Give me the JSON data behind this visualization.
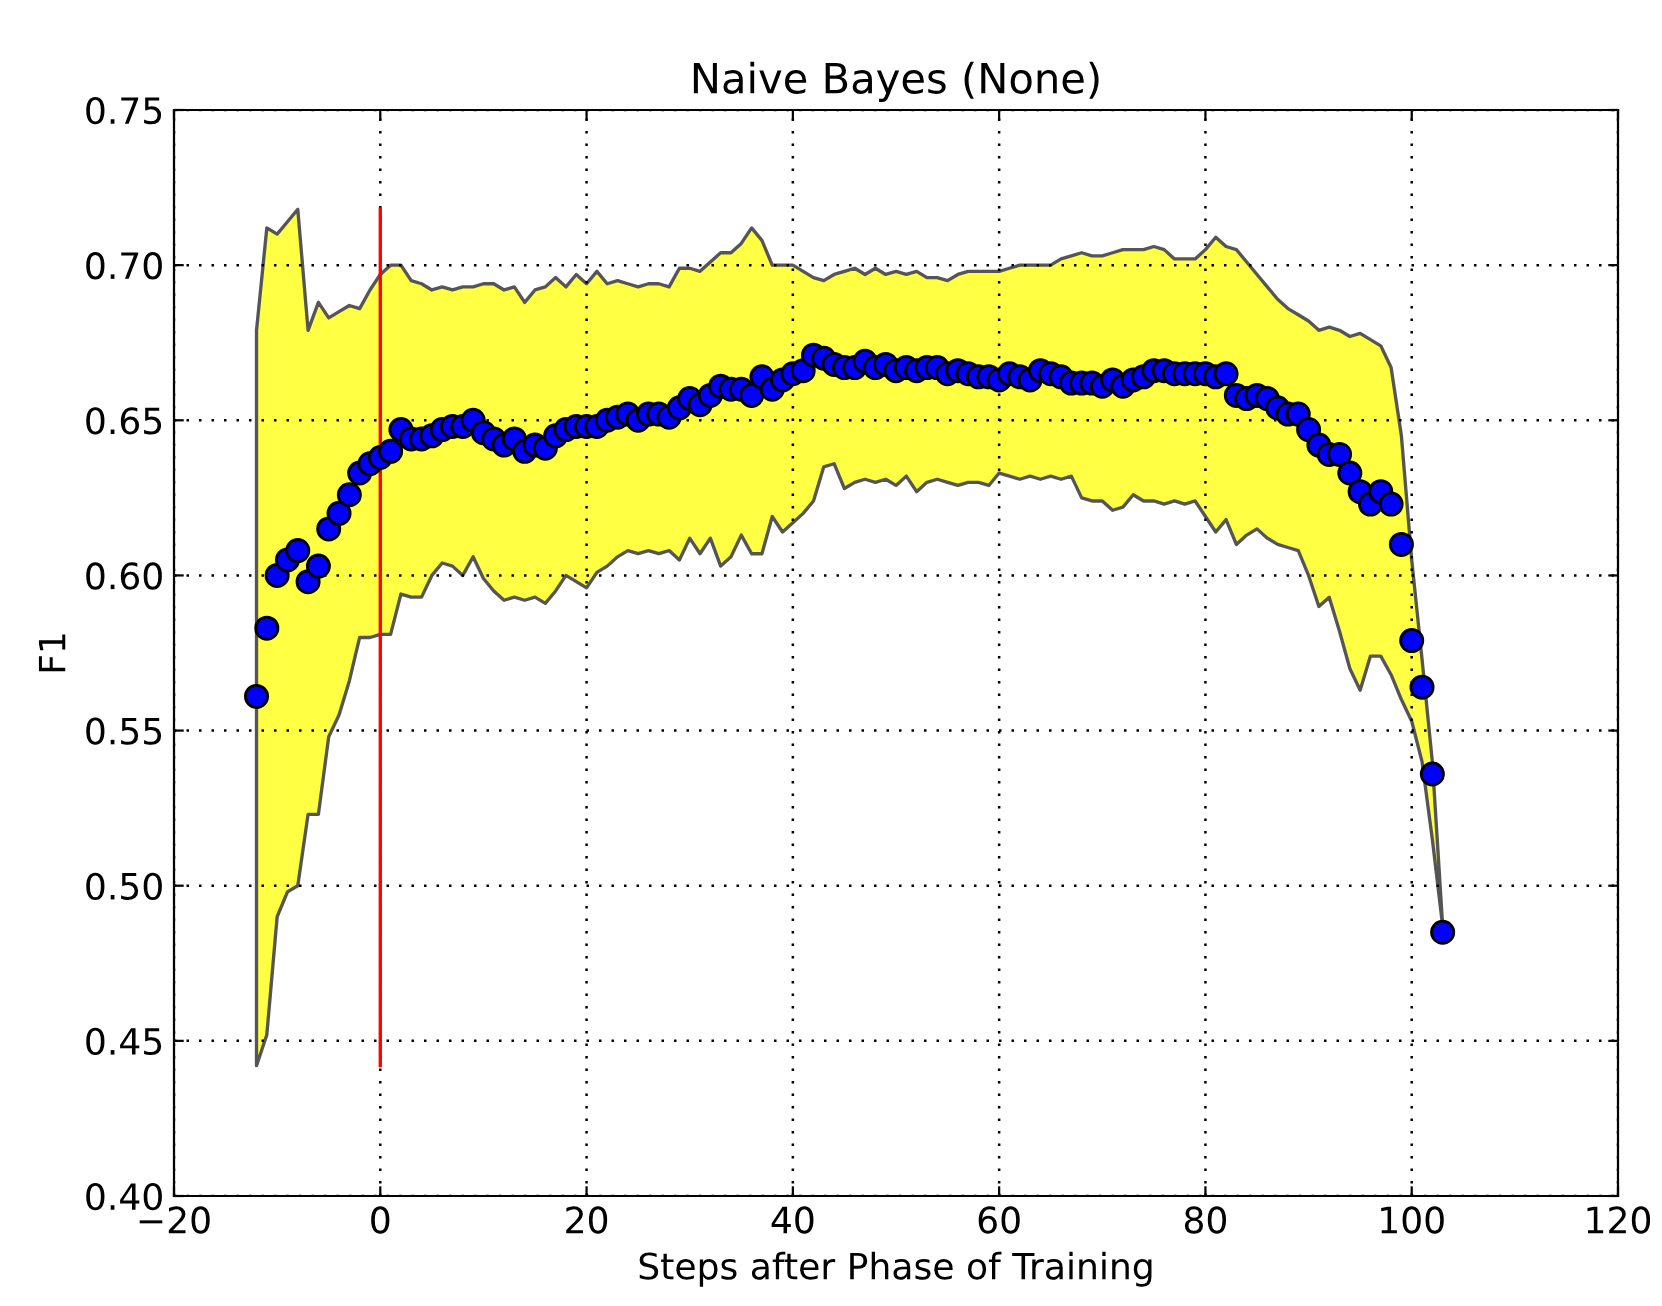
{
  "chart_data": {
    "type": "scatter",
    "title": "Naive Bayes (None)",
    "xlabel": "Steps after Phase of Training",
    "ylabel": "F1",
    "x": [
      -12,
      -11,
      -10,
      -9,
      -8,
      -7,
      -6,
      -5,
      -4,
      -3,
      -2,
      -1,
      0,
      1,
      2,
      3,
      4,
      5,
      6,
      7,
      8,
      9,
      10,
      11,
      12,
      13,
      14,
      15,
      16,
      17,
      18,
      19,
      20,
      21,
      22,
      23,
      24,
      25,
      26,
      27,
      28,
      29,
      30,
      31,
      32,
      33,
      34,
      35,
      36,
      37,
      38,
      39,
      40,
      41,
      42,
      43,
      44,
      45,
      46,
      47,
      48,
      49,
      50,
      51,
      52,
      53,
      54,
      55,
      56,
      57,
      58,
      59,
      60,
      61,
      62,
      63,
      64,
      65,
      66,
      67,
      68,
      69,
      70,
      71,
      72,
      73,
      74,
      75,
      76,
      77,
      78,
      79,
      80,
      81,
      82,
      83,
      84,
      85,
      86,
      87,
      88,
      89,
      90,
      91,
      92,
      93,
      94,
      95,
      96,
      97,
      98,
      99,
      100,
      101,
      102,
      103
    ],
    "series": [
      {
        "color": "#0000ff",
        "values": [
          0.561,
          0.583,
          0.6,
          0.605,
          0.608,
          0.598,
          0.603,
          0.615,
          0.62,
          0.626,
          0.633,
          0.636,
          0.638,
          0.64,
          0.647,
          0.644,
          0.644,
          0.645,
          0.647,
          0.648,
          0.648,
          0.65,
          0.646,
          0.644,
          0.642,
          0.644,
          0.64,
          0.642,
          0.641,
          0.645,
          0.647,
          0.648,
          0.648,
          0.648,
          0.65,
          0.651,
          0.652,
          0.65,
          0.652,
          0.652,
          0.651,
          0.654,
          0.657,
          0.655,
          0.658,
          0.661,
          0.66,
          0.66,
          0.658,
          0.664,
          0.66,
          0.663,
          0.665,
          0.666,
          0.671,
          0.67,
          0.668,
          0.667,
          0.667,
          0.669,
          0.667,
          0.668,
          0.666,
          0.667,
          0.666,
          0.667,
          0.667,
          0.665,
          0.666,
          0.665,
          0.664,
          0.664,
          0.663,
          0.665,
          0.664,
          0.663,
          0.666,
          0.665,
          0.664,
          0.662,
          0.662,
          0.662,
          0.661,
          0.663,
          0.661,
          0.663,
          0.664,
          0.666,
          0.666,
          0.665,
          0.665,
          0.665,
          0.665,
          0.664,
          0.665,
          0.658,
          0.657,
          0.658,
          0.657,
          0.654,
          0.652,
          0.652,
          0.647,
          0.642,
          0.639,
          0.639,
          0.633,
          0.627,
          0.623,
          0.627,
          0.623,
          0.61,
          0.579,
          0.564,
          0.536,
          0.485
        ],
        "upper": [
          0.679,
          0.712,
          0.71,
          0.714,
          0.718,
          0.679,
          0.688,
          0.683,
          0.685,
          0.687,
          0.686,
          0.692,
          0.697,
          0.7,
          0.7,
          0.695,
          0.694,
          0.692,
          0.693,
          0.692,
          0.693,
          0.693,
          0.694,
          0.694,
          0.692,
          0.693,
          0.688,
          0.692,
          0.693,
          0.696,
          0.693,
          0.697,
          0.694,
          0.698,
          0.694,
          0.695,
          0.694,
          0.693,
          0.694,
          0.694,
          0.693,
          0.699,
          0.699,
          0.698,
          0.701,
          0.704,
          0.704,
          0.707,
          0.712,
          0.708,
          0.7,
          0.7,
          0.7,
          0.698,
          0.696,
          0.695,
          0.697,
          0.698,
          0.699,
          0.697,
          0.699,
          0.697,
          0.698,
          0.697,
          0.698,
          0.696,
          0.696,
          0.695,
          0.697,
          0.698,
          0.698,
          0.698,
          0.698,
          0.699,
          0.7,
          0.7,
          0.7,
          0.7,
          0.702,
          0.703,
          0.704,
          0.703,
          0.703,
          0.704,
          0.705,
          0.705,
          0.705,
          0.706,
          0.705,
          0.702,
          0.702,
          0.702,
          0.705,
          0.709,
          0.706,
          0.705,
          0.701,
          0.697,
          0.693,
          0.689,
          0.686,
          0.684,
          0.682,
          0.679,
          0.68,
          0.679,
          0.677,
          0.678,
          0.676,
          0.674,
          0.667,
          0.645,
          0.605,
          0.573,
          0.54,
          0.487
        ],
        "lower": [
          0.442,
          0.452,
          0.49,
          0.498,
          0.5,
          0.523,
          0.523,
          0.548,
          0.555,
          0.566,
          0.58,
          0.58,
          0.581,
          0.581,
          0.594,
          0.593,
          0.593,
          0.6,
          0.604,
          0.603,
          0.6,
          0.606,
          0.599,
          0.595,
          0.592,
          0.593,
          0.592,
          0.593,
          0.591,
          0.595,
          0.6,
          0.598,
          0.596,
          0.601,
          0.603,
          0.606,
          0.608,
          0.607,
          0.608,
          0.607,
          0.608,
          0.605,
          0.612,
          0.607,
          0.612,
          0.603,
          0.606,
          0.613,
          0.607,
          0.607,
          0.619,
          0.614,
          0.617,
          0.62,
          0.624,
          0.635,
          0.636,
          0.628,
          0.63,
          0.631,
          0.63,
          0.631,
          0.629,
          0.632,
          0.627,
          0.63,
          0.631,
          0.63,
          0.629,
          0.63,
          0.63,
          0.629,
          0.633,
          0.632,
          0.631,
          0.632,
          0.631,
          0.632,
          0.631,
          0.632,
          0.625,
          0.624,
          0.624,
          0.621,
          0.622,
          0.626,
          0.624,
          0.624,
          0.623,
          0.624,
          0.623,
          0.624,
          0.619,
          0.614,
          0.618,
          0.61,
          0.613,
          0.615,
          0.612,
          0.61,
          0.609,
          0.608,
          0.6,
          0.59,
          0.593,
          0.582,
          0.57,
          0.563,
          0.574,
          0.574,
          0.568,
          0.56,
          0.553,
          0.54,
          0.515,
          0.487
        ]
      }
    ],
    "ref_lines": [
      {
        "axis": "x",
        "value": 0,
        "color": "#ff0000"
      }
    ],
    "xlim": [
      -20,
      120
    ],
    "xticks": [
      {
        "value": -20,
        "label": "−20"
      },
      0,
      20,
      40,
      60,
      80,
      100,
      120
    ],
    "ylim": [
      0.4,
      0.75
    ],
    "yticks": [
      {
        "value": 0.4,
        "label": "0.40"
      },
      {
        "value": 0.45,
        "label": "0.45"
      },
      {
        "value": 0.5,
        "label": "0.50"
      },
      {
        "value": 0.55,
        "label": "0.55"
      },
      {
        "value": 0.6,
        "label": "0.60"
      },
      {
        "value": 0.65,
        "label": "0.65"
      },
      {
        "value": 0.7,
        "label": "0.70"
      },
      {
        "value": 0.75,
        "label": "0.75"
      }
    ],
    "grid": true,
    "marker": "circle"
  }
}
